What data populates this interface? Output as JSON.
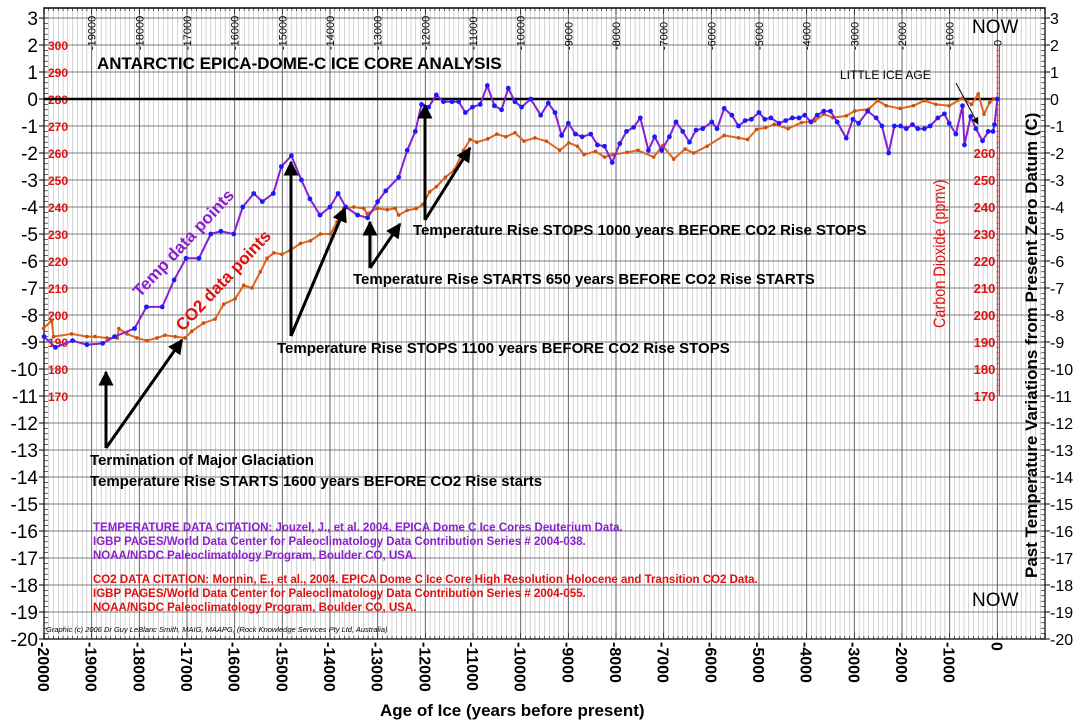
{
  "chart_data": {
    "type": "line",
    "title": "ANTARCTIC  EPICA-DOME-C  ICE  CORE  ANALYSIS",
    "xlabel": "Age of Ice (years before present)",
    "ylabel_right": "Past  Temperature  Variations  from  Present  Zero  Datum (C)",
    "ylabel_co2": "Carbon Dioxide (ppmv)",
    "xlim": [
      -20000,
      1000
    ],
    "ylim": [
      -20,
      3
    ],
    "co2_axis": {
      "ppm_at_zero": 280,
      "ppm_per_degree": 10
    },
    "x_ticks_bottom": [
      "-20000",
      "-19000",
      "-18000",
      "-17000",
      "-16000",
      "-15000",
      "-14000",
      "-13000",
      "-12000",
      "-11000",
      "-10000",
      "-9000",
      "-8000",
      "-7000",
      "-6000",
      "-5000",
      "-4000",
      "-3000",
      "-2000",
      "-1000",
      "0"
    ],
    "x_ticks_top": [
      "-19000",
      "-18000",
      "-17000",
      "-16000",
      "-15000",
      "-14000",
      "-13000",
      "-12000",
      "-11000",
      "-10000",
      "-9000",
      "-8000",
      "-7000",
      "-6000",
      "-5000",
      "-4000",
      "-3000",
      "-2000",
      "-1000",
      "0"
    ],
    "y_ticks": [
      "3",
      "2",
      "1",
      "0",
      "-1",
      "-2",
      "-3",
      "-4",
      "-5",
      "-6",
      "-7",
      "-8",
      "-9",
      "-10",
      "-11",
      "-12",
      "-13",
      "-14",
      "-15",
      "-16",
      "-17",
      "-18",
      "-19",
      "-20"
    ],
    "co2_ticks_left": [
      "300",
      "290",
      "280",
      "270",
      "260",
      "250",
      "240",
      "230",
      "220",
      "210",
      "200",
      "190",
      "180",
      "170"
    ],
    "co2_ticks_right": [
      "260",
      "250",
      "240",
      "230",
      "220",
      "210",
      "200",
      "190",
      "180",
      "170"
    ],
    "grid": true,
    "colors": {
      "temp_line": "#8a1fcf",
      "temp_marker": "#1a1aff",
      "co2": "#e0661a",
      "co2_text": "#e01010",
      "temp_text": "#8a1fcf"
    },
    "series": [
      {
        "name": "Temp data points",
        "unit": "C",
        "points": [
          [
            -20000,
            -8.8
          ],
          [
            -19760,
            -9.2
          ],
          [
            -19400,
            -8.95
          ],
          [
            -19100,
            -9.1
          ],
          [
            -18770,
            -9.05
          ],
          [
            -18520,
            -8.8
          ],
          [
            -18100,
            -8.5
          ],
          [
            -17850,
            -7.7
          ],
          [
            -17520,
            -7.7
          ],
          [
            -17270,
            -6.7
          ],
          [
            -17020,
            -5.9
          ],
          [
            -16750,
            -5.9
          ],
          [
            -16500,
            -5.0
          ],
          [
            -16290,
            -4.9
          ],
          [
            -16020,
            -5.0
          ],
          [
            -15830,
            -4.0
          ],
          [
            -15600,
            -3.5
          ],
          [
            -15420,
            -3.8
          ],
          [
            -15190,
            -3.5
          ],
          [
            -15020,
            -2.5
          ],
          [
            -14810,
            -2.1
          ],
          [
            -14600,
            -3.0
          ],
          [
            -14420,
            -3.7
          ],
          [
            -14210,
            -4.3
          ],
          [
            -14000,
            -4.0
          ],
          [
            -13830,
            -3.5
          ],
          [
            -13670,
            -4.0
          ],
          [
            -13420,
            -4.3
          ],
          [
            -13210,
            -4.4
          ],
          [
            -13000,
            -3.8
          ],
          [
            -12830,
            -3.4
          ],
          [
            -12560,
            -2.9
          ],
          [
            -12380,
            -1.9
          ],
          [
            -12210,
            -1.2
          ],
          [
            -12080,
            -0.2
          ],
          [
            -11930,
            -0.3
          ],
          [
            -11770,
            0.15
          ],
          [
            -11620,
            -0.1
          ],
          [
            -11440,
            -0.1
          ],
          [
            -11300,
            -0.1
          ],
          [
            -11160,
            -0.5
          ],
          [
            -11010,
            -0.3
          ],
          [
            -10850,
            -0.2
          ],
          [
            -10700,
            0.5
          ],
          [
            -10550,
            -0.25
          ],
          [
            -10400,
            -0.4
          ],
          [
            -10260,
            0.4
          ],
          [
            -10120,
            -0.1
          ],
          [
            -9980,
            -0.3
          ],
          [
            -9790,
            0
          ],
          [
            -9580,
            -0.6
          ],
          [
            -9420,
            -0.15
          ],
          [
            -9280,
            -0.5
          ],
          [
            -9140,
            -1.35
          ],
          [
            -9000,
            -0.9
          ],
          [
            -8850,
            -1.3
          ],
          [
            -8710,
            -1.4
          ],
          [
            -8530,
            -1.3
          ],
          [
            -8390,
            -1.7
          ],
          [
            -8240,
            -1.75
          ],
          [
            -8080,
            -2.35
          ],
          [
            -7920,
            -1.65
          ],
          [
            -7780,
            -1.2
          ],
          [
            -7630,
            -1.05
          ],
          [
            -7490,
            -0.7
          ],
          [
            -7320,
            -1.9
          ],
          [
            -7190,
            -1.4
          ],
          [
            -7040,
            -1.9
          ],
          [
            -6880,
            -1.4
          ],
          [
            -6740,
            -0.85
          ],
          [
            -6600,
            -1.2
          ],
          [
            -6460,
            -1.6
          ],
          [
            -6320,
            -1.15
          ],
          [
            -6180,
            -1.1
          ],
          [
            -5990,
            -0.85
          ],
          [
            -5880,
            -1.1
          ],
          [
            -5730,
            -0.35
          ],
          [
            -5570,
            -0.6
          ],
          [
            -5430,
            -1.0
          ],
          [
            -5290,
            -0.8
          ],
          [
            -5160,
            -0.75
          ],
          [
            -5000,
            -0.5
          ],
          [
            -4880,
            -0.75
          ],
          [
            -4750,
            -0.7
          ],
          [
            -4580,
            -0.9
          ],
          [
            -4440,
            -0.8
          ],
          [
            -4300,
            -0.7
          ],
          [
            -4160,
            -0.7
          ],
          [
            -4040,
            -0.6
          ],
          [
            -3910,
            -0.85
          ],
          [
            -3780,
            -0.6
          ],
          [
            -3640,
            -0.45
          ],
          [
            -3500,
            -0.45
          ],
          [
            -3360,
            -0.85
          ],
          [
            -3170,
            -1.45
          ],
          [
            -3030,
            -0.75
          ],
          [
            -2910,
            -0.9
          ],
          [
            -2720,
            -0.45
          ],
          [
            -2540,
            -0.7
          ],
          [
            -2420,
            -1.0
          ],
          [
            -2280,
            -2.0
          ],
          [
            -2160,
            -1.0
          ],
          [
            -2030,
            -1.0
          ],
          [
            -1910,
            -1.1
          ],
          [
            -1780,
            -0.95
          ],
          [
            -1670,
            -1.1
          ],
          [
            -1530,
            -1.1
          ],
          [
            -1410,
            -1.0
          ],
          [
            -1250,
            -0.7
          ],
          [
            -1110,
            -0.55
          ],
          [
            -1010,
            -0.9
          ],
          [
            -870,
            -1.3
          ],
          [
            -730,
            -0.25
          ],
          [
            -690,
            -1.7
          ],
          [
            -560,
            -0.65
          ],
          [
            -450,
            -1.1
          ],
          [
            -310,
            -1.55
          ],
          [
            -190,
            -1.2
          ],
          [
            -90,
            -1.2
          ],
          [
            -60,
            -0.95
          ],
          [
            0,
            0
          ]
        ]
      },
      {
        "name": "CO2 data points",
        "unit": "ppmv",
        "points": [
          [
            -20010,
            195
          ],
          [
            -19840,
            198
          ],
          [
            -19800,
            192
          ],
          [
            -19420,
            193
          ],
          [
            -19100,
            192
          ],
          [
            -18930,
            192
          ],
          [
            -18680,
            191.5
          ],
          [
            -18460,
            191.5
          ],
          [
            -18430,
            195
          ],
          [
            -18260,
            193
          ],
          [
            -18050,
            191.5
          ],
          [
            -17840,
            190.5
          ],
          [
            -17630,
            191.5
          ],
          [
            -17460,
            192.5
          ],
          [
            -17250,
            192
          ],
          [
            -17040,
            191.5
          ],
          [
            -16900,
            194
          ],
          [
            -16650,
            197
          ],
          [
            -16410,
            198.5
          ],
          [
            -16230,
            204
          ],
          [
            -15990,
            206
          ],
          [
            -15810,
            211
          ],
          [
            -15640,
            210
          ],
          [
            -15460,
            216
          ],
          [
            -15320,
            221
          ],
          [
            -15180,
            223
          ],
          [
            -15010,
            222.5
          ],
          [
            -14830,
            224
          ],
          [
            -14620,
            226.5
          ],
          [
            -14410,
            227.5
          ],
          [
            -14200,
            230
          ],
          [
            -13990,
            230
          ],
          [
            -13850,
            234.5
          ],
          [
            -13710,
            239.5
          ],
          [
            -13500,
            240
          ],
          [
            -13290,
            239.5
          ],
          [
            -13220,
            237.5
          ],
          [
            -13010,
            239.5
          ],
          [
            -12800,
            239
          ],
          [
            -12630,
            239.5
          ],
          [
            -12560,
            237
          ],
          [
            -12380,
            238.8
          ],
          [
            -12190,
            239.4
          ],
          [
            -12050,
            241
          ],
          [
            -11910,
            245.6
          ],
          [
            -11770,
            247.5
          ],
          [
            -11580,
            251
          ],
          [
            -11390,
            253.75
          ],
          [
            -11200,
            261
          ],
          [
            -11060,
            265
          ],
          [
            -10920,
            264
          ],
          [
            -10690,
            265.25
          ],
          [
            -10500,
            267
          ],
          [
            -10310,
            266
          ],
          [
            -10120,
            267.5
          ],
          [
            -9930,
            264.4
          ],
          [
            -9700,
            265.6
          ],
          [
            -9460,
            264.4
          ],
          [
            -9180,
            261
          ],
          [
            -8990,
            263.75
          ],
          [
            -8810,
            262.5
          ],
          [
            -8670,
            259.4
          ],
          [
            -8430,
            260.6
          ],
          [
            -8240,
            258.5
          ],
          [
            -8060,
            259.4
          ],
          [
            -7770,
            260.25
          ],
          [
            -7540,
            261
          ],
          [
            -7210,
            258.5
          ],
          [
            -7020,
            262.75
          ],
          [
            -6790,
            257.75
          ],
          [
            -6550,
            261.5
          ],
          [
            -6370,
            260
          ],
          [
            -6090,
            262.5
          ],
          [
            -5730,
            266.5
          ],
          [
            -5430,
            265.6
          ],
          [
            -5240,
            265
          ],
          [
            -5050,
            268.75
          ],
          [
            -4860,
            269.4
          ],
          [
            -4680,
            270.6
          ],
          [
            -4390,
            269
          ],
          [
            -4110,
            271.25
          ],
          [
            -3830,
            271.9
          ],
          [
            -3640,
            274.4
          ],
          [
            -3450,
            273.1
          ],
          [
            -3170,
            273.75
          ],
          [
            -2990,
            275.6
          ],
          [
            -2700,
            276.25
          ],
          [
            -2510,
            279.4
          ],
          [
            -2330,
            277.5
          ],
          [
            -2040,
            276.5
          ],
          [
            -1760,
            277.5
          ],
          [
            -1530,
            279.4
          ],
          [
            -1290,
            278
          ],
          [
            -1010,
            277.5
          ],
          [
            -730,
            280.25
          ],
          [
            -540,
            278
          ],
          [
            -400,
            281.9
          ],
          [
            -280,
            274.4
          ],
          [
            -160,
            278.75
          ],
          [
            -70,
            280
          ]
        ]
      }
    ],
    "annotations": {
      "now_top": "NOW",
      "now_bottom": "NOW",
      "little_ice_age": "LITTLE ICE AGE",
      "stops_1000": "Temperature Rise STOPS 1000 years  BEFORE CO2 Rise STOPS",
      "starts_650": "Temperature Rise STARTS 650 years  BEFORE CO2 Rise STARTS",
      "stops_1100": "Temperature Rise STOPS 1100 years  BEFORE CO2 Rise STOPS",
      "termination_1": "Termination of Major Glaciation",
      "termination_2": "Temperature Rise STARTS 1600 years  BEFORE CO2 Rise starts",
      "temp_label": "Temp data points",
      "co2_label": "CO2 data points"
    },
    "citations": {
      "temp": [
        "TEMPERATURE DATA CITATION: Jouzel, J., et al. 2004.  EPICA Dome C Ice Cores Deuterium Data.",
        "IGBP PAGES/World Data Center for Paleoclimatology Data Contribution Series # 2004-038.",
        "NOAA/NGDC Paleoclimatology Program, Boulder CO, USA."
      ],
      "co2": [
        "CO2 DATA CITATION: Monnin, E., et al., 2004.  EPICA Dome C Ice Core High Resolution Holocene and Transition CO2 Data.",
        "IGBP PAGES/World Data Center for Paleoclimatology Data Contribution Series # 2004-055.",
        "NOAA/NGDC Paleoclimatology Program, Boulder CO, USA."
      ],
      "copyright": "Graphic (c) 2006 Dr Guy LeBlanc Smith, MAIG, MAAPG, (Rock Knowledge Services Pty Ltd, Australia)"
    }
  }
}
